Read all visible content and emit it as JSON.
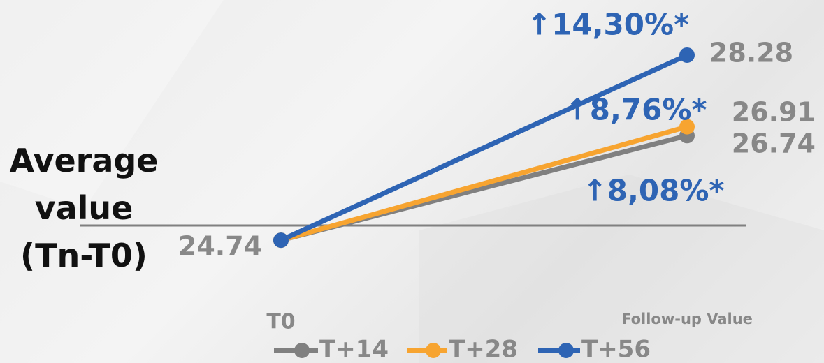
{
  "chart_data": {
    "type": "line",
    "y_label": "Average value (Tn-T0)",
    "categories": [
      "T0",
      "Follow-up Value"
    ],
    "series": [
      {
        "name": "T+14",
        "color": "#808080",
        "values": [
          24.74,
          26.74
        ]
      },
      {
        "name": "T+28",
        "color": "#f7a430",
        "values": [
          24.74,
          26.91
        ]
      },
      {
        "name": "T+56",
        "color": "#2e64b4",
        "values": [
          24.74,
          28.28
        ]
      }
    ],
    "annotations": [
      "↑14,30%*",
      "↑8,76%*",
      "↑8,08%*"
    ],
    "annotation_color": "#2e64b4",
    "ylim": [
      23.5,
      28.8
    ]
  }
}
